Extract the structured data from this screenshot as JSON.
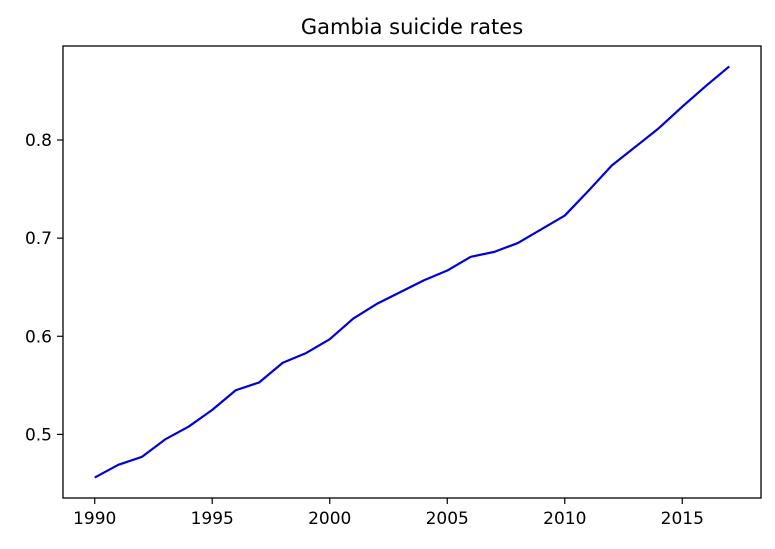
{
  "chart_data": {
    "type": "line",
    "title": "Gambia suicide rates",
    "xlabel": "",
    "ylabel": "",
    "xlim": [
      1988.65,
      2018.35
    ],
    "ylim": [
      0.4352,
      0.8958
    ],
    "x_ticks": [
      1990,
      1995,
      2000,
      2005,
      2010,
      2015
    ],
    "y_ticks": [
      0.5,
      0.6,
      0.7,
      0.8
    ],
    "y_tick_labels": [
      "0.5",
      "0.6",
      "0.7",
      "0.8"
    ],
    "grid": false,
    "series": [
      {
        "color": "#0000dd",
        "x": [
          1990,
          1991,
          1992,
          1993,
          1994,
          1995,
          1996,
          1997,
          1998,
          1999,
          2000,
          2001,
          2002,
          2003,
          2004,
          2005,
          2006,
          2007,
          2008,
          2009,
          2010,
          2011,
          2012,
          2013,
          2014,
          2015,
          2016,
          2017
        ],
        "y": [
          0.456,
          0.469,
          0.477,
          0.495,
          0.508,
          0.525,
          0.545,
          0.553,
          0.573,
          0.583,
          0.597,
          0.618,
          0.633,
          0.645,
          0.657,
          0.667,
          0.681,
          0.686,
          0.695,
          0.709,
          0.723,
          0.748,
          0.774,
          0.793,
          0.812,
          0.834,
          0.855,
          0.875
        ]
      }
    ]
  }
}
